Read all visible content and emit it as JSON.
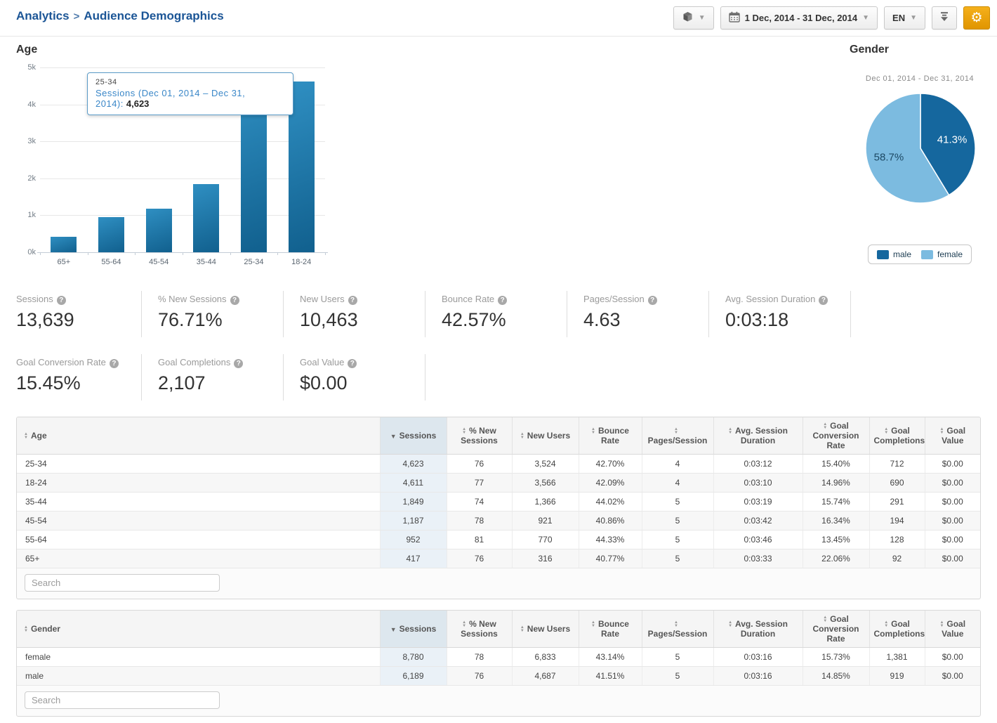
{
  "colors": {
    "accent_orange": "#e89b00",
    "breadcrumb_blue": "#1b5596",
    "bar_gradient_top": "#2f8fc2",
    "bar_gradient_bottom": "#11608e",
    "male_blue": "#15679e",
    "female_blue": "#7cbbe0",
    "sorted_column_header_bg": "#dde7ee",
    "sorted_column_body_bg": "#eaf1f7"
  },
  "header": {
    "breadcrumb": {
      "root": "Analytics",
      "separator": ">",
      "current": "Audience Demographics"
    },
    "toolbar": {
      "module_button": {
        "icon": "cube-icon"
      },
      "date_button": {
        "icon": "calendar-icon",
        "label": "1 Dec, 2014 - 31 Dec, 2014"
      },
      "language_button": {
        "label": "EN"
      },
      "download_button": {
        "icon": "download-icon"
      },
      "settings_button": {
        "icon": "gear-icon"
      }
    }
  },
  "chart_data": [
    {
      "type": "bar",
      "title": "Age",
      "categories": [
        "65+",
        "55-64",
        "45-54",
        "35-44",
        "25-34",
        "18-24"
      ],
      "values": [
        417,
        952,
        1187,
        1849,
        4623,
        4611
      ],
      "series_name": "Sessions",
      "y_ticks": [
        "5k",
        "4k",
        "3k",
        "2k",
        "1k",
        "0k"
      ],
      "ylim": [
        0,
        5000
      ],
      "grid": true,
      "tooltip": {
        "category": "25-34",
        "series_label": "Sessions (Dec 01, 2014 – Dec 31, 2014):",
        "value": "4,623"
      }
    },
    {
      "type": "pie",
      "title": "Gender",
      "subtitle": "Dec 01, 2014 - Dec 31, 2014",
      "labels": [
        "male",
        "female"
      ],
      "values_pct": [
        41.3,
        58.7
      ],
      "slice_labels": [
        "41.3%",
        "58.7%"
      ],
      "slice_colors": [
        "#15679e",
        "#7cbbe0"
      ],
      "slice_text_colors": [
        "#ffffff",
        "#1d4964"
      ],
      "legend_position": "bottom",
      "legend": [
        "male",
        "female"
      ]
    }
  ],
  "metrics": {
    "row1": [
      {
        "label": "Sessions",
        "value": "13,639"
      },
      {
        "label": "% New Sessions",
        "value": "76.71%"
      },
      {
        "label": "New Users",
        "value": "10,463"
      },
      {
        "label": "Bounce Rate",
        "value": "42.57%"
      },
      {
        "label": "Pages/Session",
        "value": "4.63"
      },
      {
        "label": "Avg. Session Duration",
        "value": "0:03:18"
      }
    ],
    "row2": [
      {
        "label": "Goal Conversion Rate",
        "value": "15.45%"
      },
      {
        "label": "Goal Completions",
        "value": "2,107"
      },
      {
        "label": "Goal Value",
        "value": "$0.00"
      }
    ]
  },
  "tables": {
    "age": {
      "key_column": "Age",
      "columns": [
        "Sessions",
        "% New Sessions",
        "New Users",
        "Bounce Rate",
        "Pages/Session",
        "Avg. Session Duration",
        "Goal Conversion Rate",
        "Goal Completions",
        "Goal Value"
      ],
      "sorted_column": "Sessions",
      "sort_direction": "desc",
      "rows": [
        [
          "25-34",
          "4,623",
          "76",
          "3,524",
          "42.70%",
          "4",
          "0:03:12",
          "15.40%",
          "712",
          "$0.00"
        ],
        [
          "18-24",
          "4,611",
          "77",
          "3,566",
          "42.09%",
          "4",
          "0:03:10",
          "14.96%",
          "690",
          "$0.00"
        ],
        [
          "35-44",
          "1,849",
          "74",
          "1,366",
          "44.02%",
          "5",
          "0:03:19",
          "15.74%",
          "291",
          "$0.00"
        ],
        [
          "45-54",
          "1,187",
          "78",
          "921",
          "40.86%",
          "5",
          "0:03:42",
          "16.34%",
          "194",
          "$0.00"
        ],
        [
          "55-64",
          "952",
          "81",
          "770",
          "44.33%",
          "5",
          "0:03:46",
          "13.45%",
          "128",
          "$0.00"
        ],
        [
          "65+",
          "417",
          "76",
          "316",
          "40.77%",
          "5",
          "0:03:33",
          "22.06%",
          "92",
          "$0.00"
        ]
      ],
      "search_placeholder": "Search"
    },
    "gender": {
      "key_column": "Gender",
      "columns": [
        "Sessions",
        "% New Sessions",
        "New Users",
        "Bounce Rate",
        "Pages/Session",
        "Avg. Session Duration",
        "Goal Conversion Rate",
        "Goal Completions",
        "Goal Value"
      ],
      "sorted_column": "Sessions",
      "sort_direction": "desc",
      "rows": [
        [
          "female",
          "8,780",
          "78",
          "6,833",
          "43.14%",
          "5",
          "0:03:16",
          "15.73%",
          "1,381",
          "$0.00"
        ],
        [
          "male",
          "6,189",
          "76",
          "4,687",
          "41.51%",
          "5",
          "0:03:16",
          "14.85%",
          "919",
          "$0.00"
        ]
      ],
      "search_placeholder": "Search"
    }
  }
}
